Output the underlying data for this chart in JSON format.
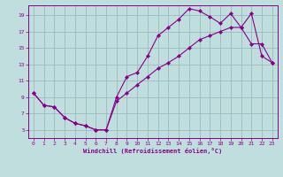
{
  "xlabel": "Windchill (Refroidissement éolien,°C)",
  "bg_color": "#c0dede",
  "line_color": "#880088",
  "grid_color": "#99bbbb",
  "xlim": [
    -0.5,
    23.5
  ],
  "ylim": [
    4.0,
    20.2
  ],
  "xticks": [
    0,
    1,
    2,
    3,
    4,
    5,
    6,
    7,
    8,
    9,
    10,
    11,
    12,
    13,
    14,
    15,
    16,
    17,
    18,
    19,
    20,
    21,
    22,
    23
  ],
  "yticks": [
    5,
    7,
    9,
    11,
    13,
    15,
    17,
    19
  ],
  "line1_x": [
    0,
    1,
    2,
    3,
    4,
    5,
    6,
    7,
    8,
    9,
    10,
    11,
    12,
    13,
    14,
    15,
    16,
    17,
    18,
    19,
    20,
    21,
    22,
    23
  ],
  "line1_y": [
    9.5,
    8.0,
    7.8,
    6.5,
    5.8,
    5.5,
    5.0,
    5.0,
    9.0,
    11.5,
    12.0,
    14.0,
    16.5,
    17.5,
    18.5,
    19.8,
    19.5,
    18.8,
    18.0,
    19.2,
    17.5,
    19.2,
    14.0,
    13.2
  ],
  "line2_x": [
    0,
    1,
    2,
    3,
    4,
    5,
    6,
    7,
    8,
    9,
    10,
    11,
    12,
    13,
    14,
    15,
    16,
    17,
    18,
    19,
    20,
    21,
    22,
    23
  ],
  "line2_y": [
    9.5,
    8.0,
    7.8,
    6.5,
    5.8,
    5.5,
    5.0,
    5.0,
    8.5,
    9.5,
    10.5,
    11.5,
    12.5,
    13.2,
    14.0,
    15.0,
    16.0,
    16.5,
    17.0,
    17.5,
    17.5,
    15.5,
    15.5,
    13.2
  ]
}
